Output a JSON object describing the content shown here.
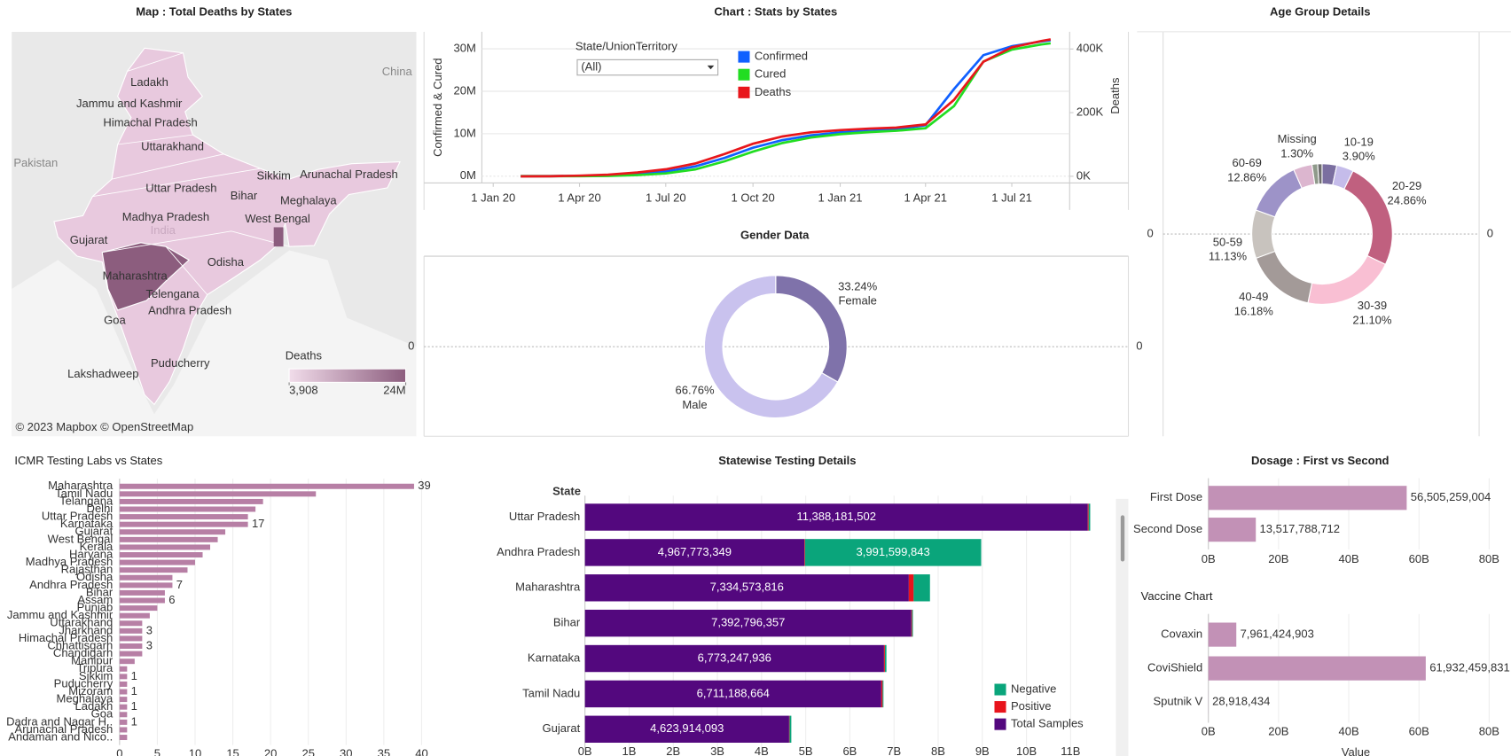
{
  "chart_data": [
    {
      "type": "map",
      "title": "Map : Total Deaths by States",
      "labels": [
        "Ladakh",
        "Jammu and Kashmir",
        "Himachal Pradesh",
        "Uttarakhand",
        "Sikkim",
        "Arunachal Pradesh",
        "Uttar Pradesh",
        "Bihar",
        "Meghalaya",
        "Madhya Pradesh",
        "West Bengal",
        "Gujarat",
        "Odisha",
        "Maharashtra",
        "Telengana",
        "Andhra Pradesh",
        "Goa",
        "Puducherry",
        "Lakshadweep"
      ],
      "annotations": [
        "China",
        "Pakistan",
        "India"
      ],
      "legend_title": "Deaths",
      "legend_range": [
        {
          "value": 3908,
          "label": "3,908"
        },
        {
          "value": 24000000,
          "label": "24M"
        }
      ],
      "colors": [
        "#f1dcea",
        "#8c5d7e"
      ],
      "attribution": "© 2023 Mapbox © OpenStreetMap"
    },
    {
      "type": "line",
      "title": "Chart : Stats by States",
      "filter": {
        "label": "State/UnionTerritory",
        "value": "(All)"
      },
      "y_label": "Confirmed & Cured",
      "y2_label": "Deaths",
      "x": [
        "2020-01-30",
        "2020-03-01",
        "2020-04-01",
        "2020-05-01",
        "2020-06-01",
        "2020-07-01",
        "2020-08-01",
        "2020-09-01",
        "2020-10-01",
        "2020-11-01",
        "2020-12-01",
        "2021-01-01",
        "2021-02-01",
        "2021-03-01",
        "2021-04-01",
        "2021-05-01",
        "2021-06-01",
        "2021-07-01",
        "2021-08-01",
        "2021-08-11"
      ],
      "xlim": [
        "2019-12-20",
        "2021-08-31"
      ],
      "xticks": [
        {
          "value": "2020-01-01",
          "label": "1 Jan 20"
        },
        {
          "value": "2020-04-01",
          "label": "1 Apr 20"
        },
        {
          "value": "2020-07-01",
          "label": "1 Jul 20"
        },
        {
          "value": "2020-10-01",
          "label": "1 Oct 20"
        },
        {
          "value": "2021-01-01",
          "label": "1 Jan 21"
        },
        {
          "value": "2021-04-01",
          "label": "1 Apr 21"
        },
        {
          "value": "2021-07-01",
          "label": "1 Jul 21"
        }
      ],
      "ylim": [
        -1600000,
        34000000
      ],
      "yticks": [
        {
          "value": 0,
          "label": "0M"
        },
        {
          "value": 10000000,
          "label": "10M"
        },
        {
          "value": 20000000,
          "label": "20M"
        },
        {
          "value": 30000000,
          "label": "30M"
        }
      ],
      "y2lim": [
        -21000,
        454000
      ],
      "y2ticks": [
        {
          "value": 0,
          "label": "0K"
        },
        {
          "value": 200000,
          "label": "200K"
        },
        {
          "value": 400000,
          "label": "400K"
        }
      ],
      "series": [
        {
          "name": "Confirmed",
          "color": "#1060ff",
          "values": [
            0,
            2000,
            50000,
            150000,
            500000,
            1100000,
            2300000,
            4300000,
            6700000,
            8500000,
            9600000,
            10300000,
            10700000,
            11000000,
            12000000,
            20500000,
            28500000,
            30600000,
            31700000,
            32000000
          ]
        },
        {
          "name": "Cured",
          "color": "#22dd22",
          "values": [
            0,
            1000,
            10000,
            50000,
            250000,
            650000,
            1600000,
            3500000,
            5800000,
            7800000,
            9100000,
            9900000,
            10400000,
            10700000,
            11300000,
            16500000,
            27000000,
            29800000,
            31000000,
            31300000
          ]
        },
        {
          "name": "Deaths",
          "color": "#e8161b",
          "axis": "y2",
          "values": [
            0,
            100,
            2000,
            5000,
            12000,
            22000,
            40000,
            70000,
            102000,
            125000,
            138000,
            145000,
            150000,
            153000,
            163000,
            240000,
            360000,
            405000,
            425000,
            430000
          ]
        }
      ]
    },
    {
      "type": "donut",
      "title": "Gender Data",
      "categories": [
        "Female",
        "Male"
      ],
      "values": [
        33.24,
        66.76
      ],
      "value_labels": [
        "33.24%",
        "66.76%"
      ],
      "colors": [
        "#7f72aa",
        "#c9c2ee"
      ],
      "yticks": [
        0
      ],
      "y2ticks": [
        0
      ]
    },
    {
      "type": "donut",
      "title": "Age Group Details",
      "categories": [
        null,
        "10-19",
        "20-29",
        "30-39",
        "40-49",
        "50-59",
        "60-69",
        null,
        "Missing",
        null
      ],
      "values": [
        3.37,
        3.9,
        24.86,
        21.1,
        16.18,
        11.13,
        12.86,
        4.3,
        1.3,
        1.0
      ],
      "value_labels": [
        null,
        "3.90%",
        "24.86%",
        "21.10%",
        "16.18%",
        "11.13%",
        "12.86%",
        null,
        "1.30%",
        null
      ],
      "colors": [
        "#7b6fa0",
        "#c5bcea",
        "#c0607f",
        "#f9bfd3",
        "#a39a98",
        "#c8c3be",
        "#9d93c8",
        "#dcb6cf",
        "#8f9a8b",
        "#6e6e6e"
      ],
      "yticks": [
        0
      ],
      "y2ticks": [
        0
      ]
    },
    {
      "type": "hbar",
      "title": "ICMR Testing Labs vs States",
      "categories": [
        "Maharashtra",
        "Tamil Nadu",
        "Telangana",
        "Delhi",
        "Uttar Pradesh",
        "Karnataka",
        "Gujarat",
        "West Bengal",
        "Kerala",
        "Haryana",
        "Madhya Pradesh",
        "Rajasthan",
        "Odisha",
        "Andhra Pradesh",
        "Bihar",
        "Assam",
        "Punjab",
        "Jammu and Kashmir",
        "Uttarakhand",
        "Jharkhand",
        "Himachal Pradesh",
        "Chhattisgarh",
        "Chandigarh",
        "Manipur",
        "Tripura",
        "Sikkim",
        "Puducherry",
        "Mizoram",
        "Meghalaya",
        "Ladakh",
        "Goa",
        "Dadra and Nagar H..",
        "Arunachal Pradesh",
        "Andaman and Nico.."
      ],
      "values": [
        39,
        26,
        19,
        18,
        17,
        17,
        14,
        13,
        12,
        11,
        10,
        9,
        7,
        7,
        6,
        6,
        5,
        4,
        3,
        3,
        3,
        3,
        3,
        2,
        1,
        1,
        1,
        1,
        1,
        1,
        1,
        1,
        1,
        1
      ],
      "value_labels": [
        "39",
        null,
        null,
        null,
        null,
        "17",
        null,
        null,
        null,
        null,
        null,
        null,
        null,
        "7",
        null,
        "6",
        null,
        null,
        null,
        "3",
        null,
        "3",
        null,
        null,
        null,
        "1",
        null,
        "1",
        null,
        "1",
        null,
        "1",
        null,
        null
      ],
      "color": "#b77fa5",
      "xlim": [
        0,
        43
      ],
      "xticks": [
        0,
        5,
        10,
        15,
        20,
        25,
        30,
        35,
        40
      ]
    },
    {
      "type": "stacked_hbar",
      "title": "Statewise Testing Details",
      "y_label": "State",
      "categories": [
        "Uttar Pradesh",
        "Andhra Pradesh",
        "Maharashtra",
        "Bihar",
        "Karnataka",
        "Tamil Nadu",
        "Gujarat"
      ],
      "series": [
        {
          "name": "Total Samples",
          "color": "#53087e",
          "values": [
            11388181502,
            4967773349,
            7334573816,
            7392796357,
            6773247936,
            6711188664,
            4623914093
          ],
          "value_labels": [
            "11,388,181,502",
            "4,967,773,349",
            "7,334,573,816",
            "7,392,796,357",
            "6,773,247,936",
            "6,711,188,664",
            "4,623,914,093"
          ]
        },
        {
          "name": "Positive",
          "color": "#e8141c",
          "values": [
            20000000,
            15000000,
            110000000,
            15000000,
            20000000,
            30000000,
            10000000
          ]
        },
        {
          "name": "Negative",
          "color": "#0aa57b",
          "values": [
            35000000,
            3991599843,
            370000000,
            20000000,
            35000000,
            20000000,
            40000000
          ],
          "value_labels": [
            null,
            "3,991,599,843",
            null,
            null,
            null,
            null,
            null
          ]
        }
      ],
      "xlim": [
        0,
        11850000000
      ],
      "xticks": [
        {
          "value": 0,
          "label": "0B"
        },
        {
          "value": 1000000000,
          "label": "1B"
        },
        {
          "value": 2000000000,
          "label": "2B"
        },
        {
          "value": 3000000000,
          "label": "3B"
        },
        {
          "value": 4000000000,
          "label": "4B"
        },
        {
          "value": 5000000000,
          "label": "5B"
        },
        {
          "value": 6000000000,
          "label": "6B"
        },
        {
          "value": 7000000000,
          "label": "7B"
        },
        {
          "value": 8000000000,
          "label": "8B"
        },
        {
          "value": 9000000000,
          "label": "9B"
        },
        {
          "value": 10000000000,
          "label": "10B"
        },
        {
          "value": 11000000000,
          "label": "11B"
        }
      ]
    },
    {
      "type": "hbar",
      "title": "Dosage : First vs Second",
      "categories": [
        "First Dose",
        "Second Dose"
      ],
      "values": [
        56505259004,
        13517788712
      ],
      "value_labels": [
        "56,505,259,004",
        "13,517,788,712"
      ],
      "color": "#c291b6",
      "xlim": [
        0,
        84000000000
      ],
      "xticks": [
        {
          "value": 0,
          "label": "0B"
        },
        {
          "value": 20000000000,
          "label": "20B"
        },
        {
          "value": 40000000000,
          "label": "40B"
        },
        {
          "value": 60000000000,
          "label": "60B"
        },
        {
          "value": 80000000000,
          "label": "80B"
        }
      ]
    },
    {
      "type": "hbar",
      "title": "Vaccine Chart",
      "x_label": "Value",
      "categories": [
        "Covaxin",
        "CoviShield",
        "Sputnik V"
      ],
      "values": [
        7961424903,
        61932459831,
        28918434
      ],
      "value_labels": [
        "7,961,424,903",
        "61,932,459,831",
        "28,918,434"
      ],
      "color": "#c291b6",
      "xlim": [
        0,
        84000000000
      ],
      "xticks": [
        {
          "value": 0,
          "label": "0B"
        },
        {
          "value": 20000000000,
          "label": "20B"
        },
        {
          "value": 40000000000,
          "label": "40B"
        },
        {
          "value": 60000000000,
          "label": "60B"
        },
        {
          "value": 80000000000,
          "label": "80B"
        }
      ]
    }
  ]
}
